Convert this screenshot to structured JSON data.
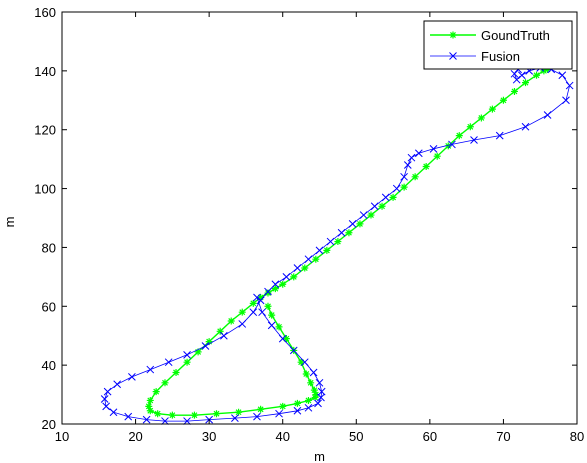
{
  "chart_data": {
    "type": "line",
    "title": "",
    "xlabel": "m",
    "ylabel": "m",
    "xlim": [
      10,
      80
    ],
    "ylim": [
      20,
      160
    ],
    "xticks": [
      10,
      20,
      30,
      40,
      50,
      60,
      70,
      80
    ],
    "yticks": [
      20,
      40,
      60,
      80,
      100,
      120,
      140,
      160
    ],
    "grid": false,
    "legend": {
      "position": "top-right"
    },
    "series": [
      {
        "name": "GoundTruth",
        "color": "#00ff00",
        "marker": "*",
        "x": [
          38.0,
          38.5,
          39.5,
          40.5,
          41.5,
          42.5,
          43.2,
          43.8,
          44.3,
          44.5,
          44.4,
          43.5,
          42.0,
          40.0,
          37.0,
          34.0,
          31.0,
          28.0,
          25.0,
          23.0,
          22.0,
          21.8,
          22.0,
          22.8,
          24.0,
          25.5,
          27.0,
          28.5,
          30.0,
          31.5,
          33.0,
          34.5,
          36.0,
          37.0,
          38.0,
          39.0,
          40.0,
          41.5,
          43.0,
          44.5,
          46.0,
          47.5,
          49.0,
          50.5,
          52.0,
          53.5,
          55.0,
          56.5,
          58.0,
          59.5,
          61.0,
          62.5,
          64.0,
          65.5,
          67.0,
          68.5,
          70.0,
          71.5,
          73.0,
          74.5,
          75.5,
          76.0
        ],
        "y": [
          60.0,
          57.0,
          53.0,
          49.0,
          45.0,
          41.0,
          37.0,
          34.0,
          31.5,
          30.0,
          29.0,
          28.0,
          27.0,
          26.0,
          25.0,
          24.0,
          23.5,
          23.0,
          23.0,
          23.5,
          24.5,
          26.0,
          28.0,
          31.0,
          34.0,
          37.5,
          41.0,
          44.5,
          48.0,
          51.5,
          55.0,
          58.0,
          61.0,
          63.0,
          64.5,
          66.0,
          67.5,
          70.0,
          73.0,
          76.0,
          79.0,
          82.0,
          85.0,
          88.0,
          91.0,
          94.0,
          97.0,
          100.5,
          104.0,
          107.5,
          111.0,
          114.5,
          118.0,
          121.0,
          124.0,
          127.0,
          130.0,
          133.0,
          136.0,
          138.5,
          140.0,
          140.5
        ]
      },
      {
        "name": "Fusion",
        "color": "#0000ff",
        "marker": "x",
        "x": [
          36.5,
          37.2,
          38.5,
          40.0,
          41.5,
          43.0,
          44.2,
          45.0,
          45.3,
          45.2,
          44.8,
          43.5,
          42.0,
          39.5,
          36.5,
          33.5,
          30.0,
          27.0,
          24.0,
          21.5,
          19.0,
          17.0,
          16.0,
          15.8,
          16.2,
          17.5,
          19.5,
          22.0,
          24.5,
          27.0,
          29.5,
          32.0,
          34.5,
          36.0,
          37.0,
          38.0,
          39.0,
          40.5,
          42.0,
          43.5,
          45.0,
          46.5,
          48.0,
          49.5,
          51.0,
          52.5,
          54.0,
          55.5,
          56.5,
          57.0,
          57.5,
          58.5,
          60.5,
          63.0,
          66.0,
          69.5,
          73.0,
          76.0,
          78.5,
          79.0,
          78.0,
          76.5,
          75.0,
          73.5,
          72.5,
          71.8,
          71.5,
          72.0
        ],
        "y": [
          63.0,
          58.0,
          53.5,
          49.0,
          45.0,
          41.0,
          37.5,
          34.0,
          31.0,
          29.0,
          27.0,
          25.5,
          24.5,
          23.5,
          22.5,
          22.0,
          21.5,
          21.0,
          21.0,
          21.5,
          22.5,
          24.0,
          26.0,
          28.5,
          31.0,
          33.5,
          36.0,
          38.5,
          41.0,
          43.5,
          46.5,
          50.0,
          54.0,
          58.0,
          62.0,
          65.0,
          67.5,
          70.0,
          73.0,
          76.0,
          79.0,
          82.0,
          85.0,
          88.0,
          91.0,
          94.0,
          97.0,
          100.0,
          104.0,
          108.0,
          110.5,
          112.0,
          113.5,
          115.0,
          116.5,
          118.0,
          121.0,
          125.0,
          130.0,
          135.0,
          138.5,
          140.5,
          141.0,
          140.0,
          138.5,
          137.0,
          139.0,
          140.5
        ]
      }
    ]
  }
}
